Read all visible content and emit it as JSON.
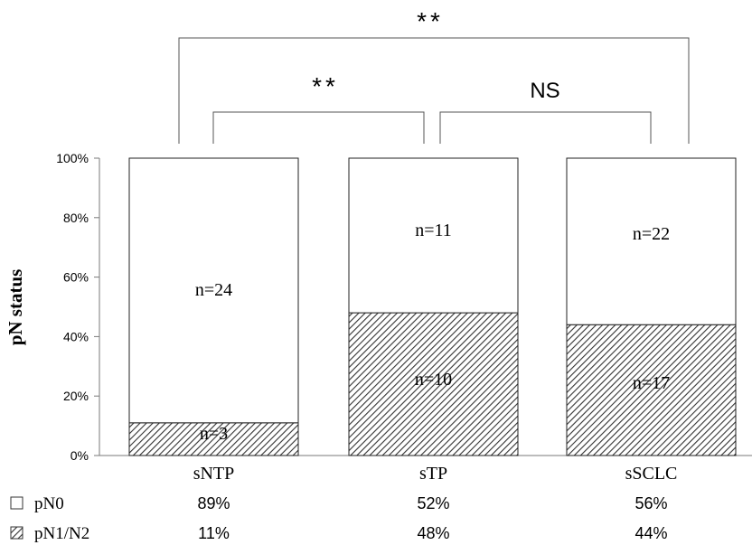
{
  "chart_data": {
    "type": "bar",
    "stacked": true,
    "percent_scale": true,
    "categories": [
      "sNTP",
      "sTP",
      "sSCLC"
    ],
    "series": [
      {
        "name": "pN1/N2",
        "values": [
          11,
          48,
          44
        ],
        "labels": [
          "n=3",
          "n=10",
          "n=17"
        ],
        "table_values": [
          "11%",
          "48%",
          "44%"
        ],
        "pattern": "hatched"
      },
      {
        "name": "pN0",
        "values": [
          89,
          52,
          56
        ],
        "labels": [
          "n=24",
          "n=11",
          "n=22"
        ],
        "table_values": [
          "89%",
          "52%",
          "56%"
        ],
        "pattern": "plain"
      }
    ],
    "ylabel": "pN status",
    "ylim": [
      0,
      100
    ],
    "yticks": [
      "0%",
      "20%",
      "40%",
      "60%",
      "80%",
      "100%"
    ],
    "significance": [
      {
        "from": "sNTP",
        "to": "sTP",
        "label": "**"
      },
      {
        "from": "sTP",
        "to": "sSCLC",
        "label": "NS"
      },
      {
        "from": "sNTP",
        "to": "sSCLC",
        "label": "**"
      }
    ],
    "grid": false,
    "legend": "table-below"
  }
}
